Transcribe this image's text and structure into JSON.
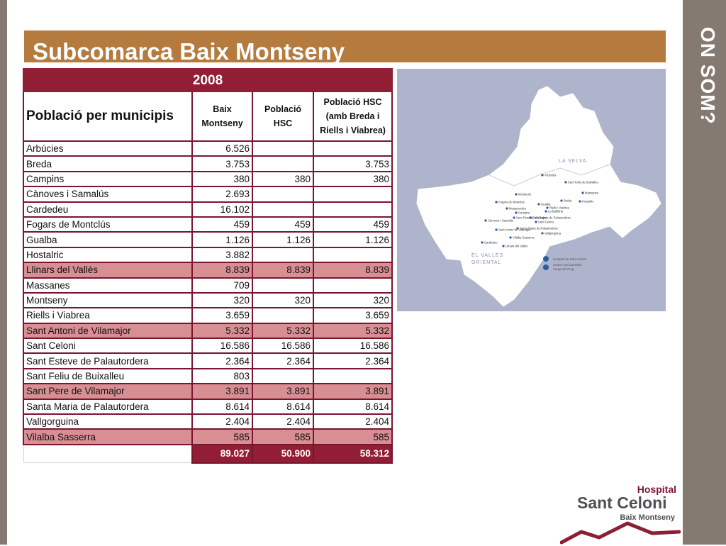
{
  "side_title": "ON SOM?",
  "title": "Subcomarca Baix Montseny",
  "table": {
    "year": "2008",
    "row_header": "Població per municipis",
    "columns": [
      "Baix Montseny",
      "Població HSC",
      "Població HSC (amb Breda i Riells i Viabrea)"
    ],
    "rows": [
      {
        "municipi": "Arbúcies",
        "baix": "6.526",
        "hsc": "",
        "hsc_ext": ""
      },
      {
        "municipi": "Breda",
        "baix": "3.753",
        "hsc": "",
        "hsc_ext": "3.753"
      },
      {
        "municipi": "Campins",
        "baix": "380",
        "hsc": "380",
        "hsc_ext": "380"
      },
      {
        "municipi": "Cànoves i Samalús",
        "baix": "2.693",
        "hsc": "",
        "hsc_ext": ""
      },
      {
        "municipi": "Cardedeu",
        "baix": "16.102",
        "hsc": "",
        "hsc_ext": ""
      },
      {
        "municipi": "Fogars de Montclús",
        "baix": "459",
        "hsc": "459",
        "hsc_ext": "459"
      },
      {
        "municipi": "Gualba",
        "baix": "1.126",
        "hsc": "1.126",
        "hsc_ext": "1.126"
      },
      {
        "municipi": "Hostalric",
        "baix": "3.882",
        "hsc": "",
        "hsc_ext": ""
      },
      {
        "municipi": "Llinars del Vallès",
        "baix": "8.839",
        "hsc": "8.839",
        "hsc_ext": "8.839",
        "highlight": true
      },
      {
        "municipi": "Massanes",
        "baix": "709",
        "hsc": "",
        "hsc_ext": ""
      },
      {
        "municipi": "Montseny",
        "baix": "320",
        "hsc": "320",
        "hsc_ext": "320"
      },
      {
        "municipi": "Riells i Viabrea",
        "baix": "3.659",
        "hsc": "",
        "hsc_ext": "3.659"
      },
      {
        "municipi": "Sant Antoni de Vilamajor",
        "baix": "5.332",
        "hsc": "5.332",
        "hsc_ext": "5.332",
        "highlight": true
      },
      {
        "municipi": "Sant Celoni",
        "baix": "16.586",
        "hsc": "16.586",
        "hsc_ext": "16.586"
      },
      {
        "municipi": "Sant Esteve de Palautordera",
        "baix": "2.364",
        "hsc": "2.364",
        "hsc_ext": "2.364"
      },
      {
        "municipi": "Sant Feliu de Buixalleu",
        "baix": "803",
        "hsc": "",
        "hsc_ext": ""
      },
      {
        "municipi": "Sant Pere de Vilamajor",
        "baix": "3.891",
        "hsc": "3.891",
        "hsc_ext": "3.891",
        "highlight": true
      },
      {
        "municipi": "Santa Maria de Palautordera",
        "baix": "8.614",
        "hsc": "8.614",
        "hsc_ext": "8.614"
      },
      {
        "municipi": "Vallgorguina",
        "baix": "2.404",
        "hsc": "2.404",
        "hsc_ext": "2.404"
      },
      {
        "municipi": "Vilalba Sasserra",
        "baix": "585",
        "hsc": "585",
        "hsc_ext": "585",
        "highlight": true
      }
    ],
    "totals": {
      "baix": "89.027",
      "hsc": "50.900",
      "hsc_ext": "58.312"
    }
  },
  "map": {
    "region_labels": [
      "LA SELVA",
      "EL VALLÈS ORIENTAL"
    ],
    "places": [
      "Arbúcies",
      "Sant Feliu de Buixalleu",
      "Massanes",
      "Montseny",
      "Fogars de Montclús",
      "Breda",
      "Hostalric",
      "Gualba",
      "Riells i Viabrea",
      "Mosqueroles",
      "Campins",
      "La Batllòria",
      "Sant Pere de Vilamajor",
      "Sant Esteve de Palautordera",
      "Sant Celoni",
      "Cànoves i Samalús",
      "Santa Maria de Palautordera",
      "Sant Antoni de Vilamajor",
      "Vallgorguina",
      "Vilalba Sasserra",
      "Cardedeu",
      "Llinars del Vallès"
    ],
    "legend": [
      "Hospital de Sant Celoni",
      "Centre Sociosanitari Verge del Puig"
    ],
    "colors": {
      "background": "#aeb4cc",
      "land": "#ffffff",
      "marker": "#2c5aa0"
    }
  },
  "logo": {
    "line1": "Hospital",
    "line2": "Sant Celoni",
    "line3": "Baix Montseny"
  },
  "colors": {
    "title_band": "#b47a3e",
    "table_header": "#921e35",
    "highlight_row": "#d88f93",
    "side_bars": "#857a72"
  }
}
